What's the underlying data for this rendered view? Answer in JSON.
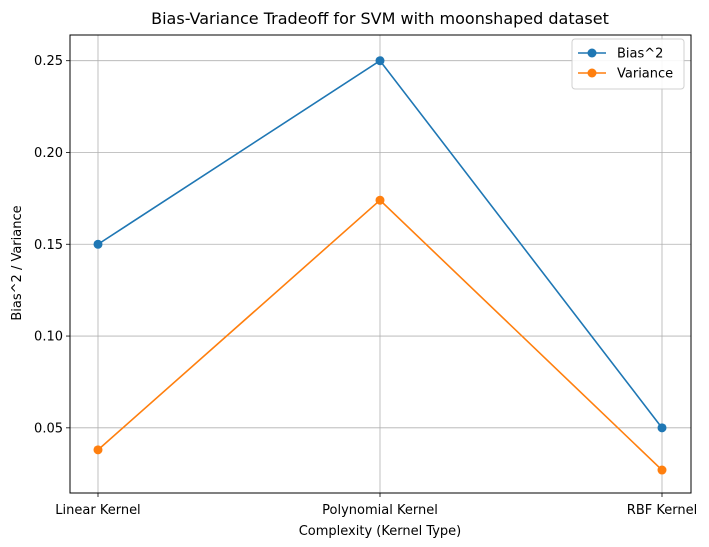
{
  "chart_data": {
    "type": "line",
    "title": "Bias-Variance Tradeoff for SVM with moonshaped dataset",
    "xlabel": "Complexity (Kernel Type)",
    "ylabel": "Bias^2 / Variance",
    "categories": [
      "Linear Kernel",
      "Polynomial Kernel",
      "RBF Kernel"
    ],
    "ylim": [
      0.0145,
      0.264
    ],
    "yticks": [
      0.05,
      0.1,
      0.15,
      0.2,
      0.25
    ],
    "ytick_labels": [
      "0.05",
      "0.10",
      "0.15",
      "0.20",
      "0.25"
    ],
    "grid": true,
    "legend_position": "top-right",
    "series": [
      {
        "name": "Bias^2",
        "color": "#1f77b4",
        "marker": "circle",
        "values": [
          0.15,
          0.25,
          0.05
        ]
      },
      {
        "name": "Variance",
        "color": "#ff7f0e",
        "marker": "circle",
        "values": [
          0.038,
          0.174,
          0.027
        ]
      }
    ]
  }
}
